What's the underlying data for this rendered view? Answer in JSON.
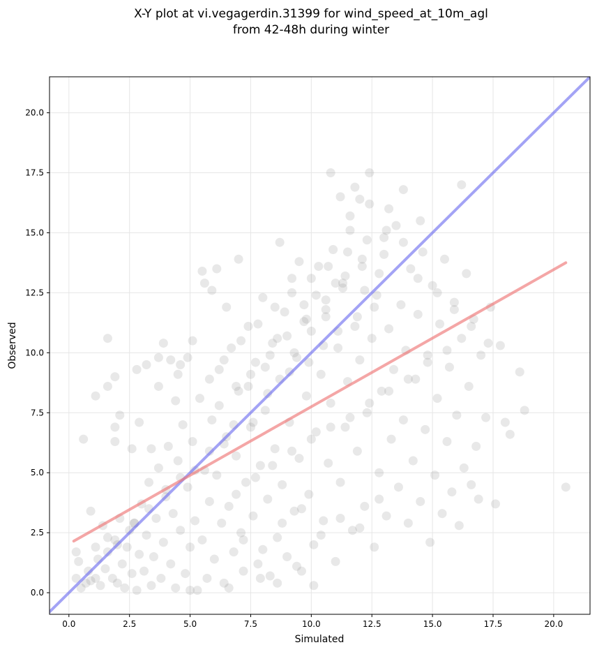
{
  "chart_data": {
    "type": "scatter",
    "title": "X-Y plot at vi.vegagerdin.31399 for wind_speed_at_10m_agl",
    "subtitle": "from 42-48h during winter",
    "xlabel": "Simulated",
    "ylabel": "Observed",
    "xlim": [
      -0.8,
      21.5
    ],
    "ylim": [
      -0.9,
      21.5
    ],
    "xticks": [
      0.0,
      2.5,
      5.0,
      7.5,
      10.0,
      12.5,
      15.0,
      17.5,
      20.0
    ],
    "yticks": [
      0.0,
      2.5,
      5.0,
      7.5,
      10.0,
      12.5,
      15.0,
      17.5,
      20.0
    ],
    "xtick_labels": [
      "0.0",
      "2.5",
      "5.0",
      "7.5",
      "10.0",
      "12.5",
      "15.0",
      "17.5",
      "20.0"
    ],
    "ytick_labels": [
      "0.0",
      "2.5",
      "5.0",
      "7.5",
      "10.0",
      "12.5",
      "15.0",
      "17.5",
      "20.0"
    ],
    "grid": true,
    "point_color": "#808080",
    "point_opacity": 0.18,
    "identity_line": {
      "x": [
        -0.8,
        21.5
      ],
      "y": [
        -0.8,
        21.5
      ],
      "color": "#6666ee"
    },
    "regression_line": {
      "x": [
        0.2,
        20.5
      ],
      "y": [
        2.15,
        13.75
      ],
      "color": "#ee7777"
    },
    "points": [
      [
        0.6,
        6.4
      ],
      [
        1.1,
        8.2
      ],
      [
        1.6,
        10.6
      ],
      [
        1.6,
        8.6
      ],
      [
        1.9,
        9.0
      ],
      [
        2.1,
        7.4
      ],
      [
        1.9,
        6.9
      ],
      [
        1.9,
        6.3
      ],
      [
        2.6,
        6.0
      ],
      [
        2.8,
        9.3
      ],
      [
        3.2,
        9.5
      ],
      [
        3.7,
        9.8
      ],
      [
        3.9,
        10.4
      ],
      [
        4.2,
        9.7
      ],
      [
        4.6,
        9.5
      ],
      [
        4.9,
        9.8
      ],
      [
        5.1,
        10.5
      ],
      [
        0.3,
        1.7
      ],
      [
        0.4,
        1.3
      ],
      [
        0.3,
        0.6
      ],
      [
        0.5,
        0.2
      ],
      [
        0.7,
        0.4
      ],
      [
        0.8,
        0.9
      ],
      [
        0.9,
        0.5
      ],
      [
        1.1,
        0.6
      ],
      [
        1.2,
        1.4
      ],
      [
        1.3,
        0.3
      ],
      [
        1.5,
        1.0
      ],
      [
        1.6,
        1.7
      ],
      [
        1.8,
        0.6
      ],
      [
        1.9,
        2.2
      ],
      [
        2.0,
        0.4
      ],
      [
        2.2,
        1.2
      ],
      [
        2.3,
        0.2
      ],
      [
        2.4,
        1.9
      ],
      [
        2.6,
        0.8
      ],
      [
        2.7,
        2.9
      ],
      [
        2.8,
        0.1
      ],
      [
        2.9,
        1.6
      ],
      [
        3.0,
        3.7
      ],
      [
        3.1,
        0.9
      ],
      [
        3.2,
        2.4
      ],
      [
        3.3,
        4.6
      ],
      [
        3.4,
        0.3
      ],
      [
        3.5,
        1.5
      ],
      [
        3.6,
        3.1
      ],
      [
        3.7,
        5.2
      ],
      [
        3.8,
        0.6
      ],
      [
        3.9,
        2.1
      ],
      [
        4.0,
        4.0
      ],
      [
        4.1,
        6.1
      ],
      [
        4.2,
        1.2
      ],
      [
        4.3,
        3.3
      ],
      [
        4.4,
        0.2
      ],
      [
        4.5,
        5.5
      ],
      [
        4.6,
        2.6
      ],
      [
        4.7,
        7.0
      ],
      [
        4.8,
        0.8
      ],
      [
        4.9,
        4.4
      ],
      [
        5.0,
        1.9
      ],
      [
        5.1,
        6.3
      ],
      [
        5.2,
        3.0
      ],
      [
        5.3,
        0.1
      ],
      [
        5.4,
        8.1
      ],
      [
        5.5,
        2.2
      ],
      [
        5.6,
        5.1
      ],
      [
        5.7,
        0.6
      ],
      [
        5.8,
        3.8
      ],
      [
        5.9,
        7.2
      ],
      [
        6.0,
        1.4
      ],
      [
        6.1,
        4.9
      ],
      [
        6.2,
        9.3
      ],
      [
        6.3,
        2.9
      ],
      [
        6.4,
        0.4
      ],
      [
        6.5,
        6.5
      ],
      [
        6.6,
        3.6
      ],
      [
        6.7,
        10.2
      ],
      [
        6.8,
        1.7
      ],
      [
        6.9,
        5.7
      ],
      [
        7.0,
        8.4
      ],
      [
        7.1,
        2.5
      ],
      [
        7.2,
        0.9
      ],
      [
        7.3,
        4.6
      ],
      [
        7.4,
        11.1
      ],
      [
        7.5,
        6.9
      ],
      [
        7.6,
        3.2
      ],
      [
        7.7,
        9.6
      ],
      [
        7.8,
        1.2
      ],
      [
        7.9,
        5.3
      ],
      [
        8.0,
        12.3
      ],
      [
        8.1,
        7.6
      ],
      [
        8.2,
        3.9
      ],
      [
        8.3,
        0.7
      ],
      [
        8.4,
        10.4
      ],
      [
        8.5,
        6.0
      ],
      [
        8.6,
        2.3
      ],
      [
        8.7,
        8.9
      ],
      [
        8.8,
        4.5
      ],
      [
        8.9,
        11.7
      ],
      [
        9.0,
        1.5
      ],
      [
        9.1,
        7.1
      ],
      [
        9.2,
        13.1
      ],
      [
        9.3,
        3.4
      ],
      [
        9.4,
        9.8
      ],
      [
        9.5,
        5.6
      ],
      [
        9.6,
        0.9
      ],
      [
        9.7,
        12.0
      ],
      [
        9.8,
        8.2
      ],
      [
        9.9,
        4.1
      ],
      [
        10.0,
        10.9
      ],
      [
        10.1,
        2.0
      ],
      [
        10.2,
        6.7
      ],
      [
        10.3,
        13.6
      ],
      [
        10.4,
        9.1
      ],
      [
        10.5,
        3.0
      ],
      [
        10.6,
        11.5
      ],
      [
        10.7,
        5.4
      ],
      [
        10.8,
        7.9
      ],
      [
        10.9,
        14.3
      ],
      [
        11.0,
        1.3
      ],
      [
        11.1,
        10.2
      ],
      [
        11.2,
        4.6
      ],
      [
        11.3,
        12.7
      ],
      [
        11.4,
        6.9
      ],
      [
        11.5,
        8.8
      ],
      [
        11.6,
        15.1
      ],
      [
        11.7,
        2.6
      ],
      [
        11.8,
        11.1
      ],
      [
        11.9,
        5.9
      ],
      [
        12.0,
        9.7
      ],
      [
        12.1,
        13.9
      ],
      [
        12.2,
        3.6
      ],
      [
        12.3,
        7.5
      ],
      [
        12.4,
        16.2
      ],
      [
        12.5,
        10.6
      ],
      [
        12.6,
        1.9
      ],
      [
        12.7,
        12.4
      ],
      [
        12.8,
        5.0
      ],
      [
        12.9,
        8.4
      ],
      [
        13.0,
        14.8
      ],
      [
        13.1,
        3.2
      ],
      [
        13.2,
        11.0
      ],
      [
        13.3,
        6.4
      ],
      [
        13.4,
        9.3
      ],
      [
        13.5,
        15.3
      ],
      [
        13.6,
        4.4
      ],
      [
        13.7,
        12.0
      ],
      [
        13.8,
        7.2
      ],
      [
        13.9,
        10.1
      ],
      [
        14.0,
        2.9
      ],
      [
        14.1,
        13.5
      ],
      [
        14.2,
        5.5
      ],
      [
        14.3,
        8.9
      ],
      [
        14.4,
        11.6
      ],
      [
        14.5,
        3.8
      ],
      [
        14.6,
        14.2
      ],
      [
        14.7,
        6.8
      ],
      [
        14.8,
        9.9
      ],
      [
        14.9,
        2.1
      ],
      [
        15.0,
        12.8
      ],
      [
        15.1,
        4.9
      ],
      [
        15.2,
        8.1
      ],
      [
        15.3,
        11.2
      ],
      [
        15.4,
        3.3
      ],
      [
        15.5,
        13.9
      ],
      [
        15.6,
        6.3
      ],
      [
        15.7,
        9.4
      ],
      [
        15.8,
        4.2
      ],
      [
        15.9,
        12.1
      ],
      [
        16.0,
        7.4
      ],
      [
        16.1,
        2.8
      ],
      [
        16.2,
        10.6
      ],
      [
        16.3,
        5.2
      ],
      [
        16.4,
        13.3
      ],
      [
        16.5,
        8.6
      ],
      [
        16.6,
        4.5
      ],
      [
        16.7,
        11.4
      ],
      [
        16.8,
        6.1
      ],
      [
        16.9,
        3.9
      ],
      [
        17.0,
        9.9
      ],
      [
        17.2,
        7.3
      ],
      [
        17.4,
        11.9
      ],
      [
        17.6,
        3.7
      ],
      [
        17.8,
        10.3
      ],
      [
        18.0,
        7.1
      ],
      [
        18.2,
        6.6
      ],
      [
        18.6,
        9.2
      ],
      [
        18.8,
        7.6
      ],
      [
        20.5,
        4.4
      ],
      [
        11.8,
        16.9
      ],
      [
        12.4,
        17.5
      ],
      [
        10.8,
        17.5
      ],
      [
        13.8,
        16.8
      ],
      [
        12.0,
        16.4
      ],
      [
        14.5,
        15.5
      ],
      [
        16.2,
        17.0
      ],
      [
        11.2,
        16.5
      ],
      [
        13.2,
        16.0
      ],
      [
        11.6,
        15.7
      ],
      [
        9.5,
        13.8
      ],
      [
        8.7,
        14.6
      ],
      [
        5.5,
        13.4
      ],
      [
        6.1,
        13.5
      ],
      [
        7.0,
        13.9
      ],
      [
        5.9,
        12.6
      ],
      [
        5.6,
        12.9
      ],
      [
        6.5,
        11.9
      ],
      [
        4.5,
        9.1
      ],
      [
        0.9,
        3.4
      ],
      [
        1.4,
        2.8
      ],
      [
        1.1,
        1.9
      ],
      [
        1.6,
        2.3
      ],
      [
        2.1,
        3.1
      ],
      [
        2.5,
        2.6
      ],
      [
        3.4,
        6.0
      ],
      [
        2.9,
        7.1
      ],
      [
        3.7,
        8.6
      ],
      [
        4.4,
        8.0
      ],
      [
        6.8,
        7.0
      ],
      [
        7.4,
        8.6
      ],
      [
        8.1,
        9.4
      ],
      [
        8.6,
        10.6
      ],
      [
        9.3,
        10.0
      ],
      [
        9.7,
        11.3
      ],
      [
        10.2,
        12.4
      ],
      [
        10.6,
        11.8
      ],
      [
        11.0,
        12.9
      ],
      [
        11.4,
        13.2
      ],
      [
        12.2,
        12.6
      ],
      [
        12.8,
        13.3
      ],
      [
        7.6,
        7.1
      ],
      [
        8.2,
        8.3
      ],
      [
        9.1,
        9.2
      ],
      [
        9.9,
        9.6
      ],
      [
        10.5,
        10.3
      ],
      [
        11.1,
        10.9
      ],
      [
        11.9,
        11.5
      ],
      [
        12.6,
        11.9
      ],
      [
        6.4,
        6.2
      ],
      [
        5.8,
        5.9
      ],
      [
        5.2,
        5.1
      ],
      [
        4.6,
        4.8
      ],
      [
        4.0,
        4.3
      ],
      [
        3.3,
        3.5
      ],
      [
        2.7,
        2.9
      ],
      [
        2.0,
        2.0
      ],
      [
        6.9,
        4.1
      ],
      [
        7.7,
        4.8
      ],
      [
        8.4,
        5.3
      ],
      [
        9.2,
        5.9
      ],
      [
        10.0,
        6.4
      ],
      [
        10.8,
        6.9
      ],
      [
        11.6,
        7.3
      ],
      [
        12.4,
        7.9
      ],
      [
        13.2,
        8.4
      ],
      [
        14.0,
        8.9
      ],
      [
        14.8,
        9.6
      ],
      [
        15.6,
        10.1
      ],
      [
        7.2,
        2.2
      ],
      [
        8.0,
        1.8
      ],
      [
        8.8,
        2.9
      ],
      [
        9.6,
        3.5
      ],
      [
        10.4,
        2.4
      ],
      [
        11.2,
        3.1
      ],
      [
        12.0,
        2.7
      ],
      [
        12.8,
        3.9
      ],
      [
        9.4,
        1.1
      ],
      [
        10.1,
        0.3
      ],
      [
        6.6,
        0.2
      ],
      [
        5.0,
        0.1
      ],
      [
        7.9,
        0.6
      ],
      [
        8.6,
        0.4
      ],
      [
        5.8,
        8.9
      ],
      [
        6.4,
        9.7
      ],
      [
        7.1,
        10.5
      ],
      [
        7.8,
        11.2
      ],
      [
        8.5,
        11.9
      ],
      [
        9.2,
        12.5
      ],
      [
        10.0,
        13.1
      ],
      [
        10.7,
        13.6
      ],
      [
        11.5,
        14.2
      ],
      [
        12.3,
        14.7
      ],
      [
        13.1,
        15.1
      ],
      [
        6.2,
        7.8
      ],
      [
        6.9,
        8.6
      ],
      [
        7.5,
        9.1
      ],
      [
        8.3,
        9.9
      ],
      [
        9.0,
        10.7
      ],
      [
        9.8,
        11.4
      ],
      [
        10.6,
        12.2
      ],
      [
        11.3,
        12.9
      ],
      [
        12.1,
        13.6
      ],
      [
        13.0,
        14.1
      ],
      [
        13.8,
        14.6
      ],
      [
        14.4,
        13.1
      ],
      [
        15.2,
        12.5
      ],
      [
        15.9,
        11.8
      ],
      [
        16.6,
        11.1
      ],
      [
        17.3,
        10.4
      ]
    ]
  }
}
